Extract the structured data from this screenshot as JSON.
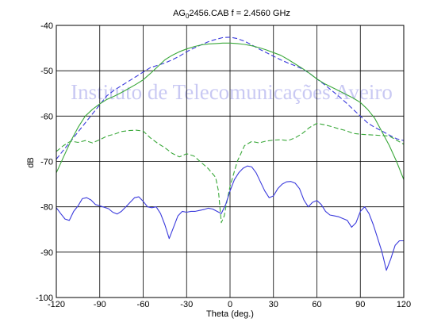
{
  "chart_data": {
    "type": "line",
    "title_main": "AG",
    "title_sub": "0",
    "title_rest": "2456.CAB   f = 2.4560 GHz",
    "xlabel": "Theta (deg.)",
    "ylabel": "dB",
    "watermark": "Instituto de Telecomunicações Aveiro",
    "xlim": [
      -120,
      120
    ],
    "ylim": [
      -100,
      -40
    ],
    "xticks": [
      -120,
      -90,
      -60,
      -30,
      0,
      30,
      60,
      90,
      120
    ],
    "yticks": [
      -40,
      -50,
      -60,
      -70,
      -80,
      -90,
      -100
    ],
    "grid": true,
    "series": [
      {
        "color": "#3a3adc",
        "dash": "6,3",
        "x": [
          -120,
          -115,
          -110,
          -105,
          -100,
          -95,
          -90,
          -85,
          -80,
          -75,
          -70,
          -65,
          -60,
          -55,
          -50,
          -45,
          -40,
          -35,
          -30,
          -25,
          -20,
          -15,
          -10,
          -5,
          0,
          5,
          10,
          15,
          20,
          25,
          30,
          35,
          40,
          45,
          50,
          55,
          60,
          65,
          70,
          75,
          80,
          85,
          90,
          95,
          100,
          105,
          110,
          115,
          120
        ],
        "y": [
          -69.5,
          -67.5,
          -65.5,
          -63.5,
          -61.5,
          -59.5,
          -57.5,
          -55.5,
          -54.3,
          -53.3,
          -52.3,
          -51.3,
          -50.3,
          -49.3,
          -48.8,
          -48.3,
          -47.6,
          -46.8,
          -45.8,
          -45.0,
          -44.3,
          -43.6,
          -43.1,
          -42.7,
          -42.6,
          -42.9,
          -43.5,
          -44.3,
          -45.2,
          -46.0,
          -46.8,
          -47.6,
          -48.3,
          -48.9,
          -49.6,
          -50.6,
          -51.8,
          -53.0,
          -54.3,
          -55.6,
          -57.0,
          -58.5,
          -60.0,
          -61.5,
          -62.5,
          -63.3,
          -64.2,
          -65.0,
          -65.4
        ]
      },
      {
        "color": "#3aa83a",
        "dash": "",
        "x": [
          -120,
          -115,
          -110,
          -105,
          -100,
          -95,
          -90,
          -85,
          -80,
          -75,
          -70,
          -65,
          -60,
          -55,
          -50,
          -45,
          -40,
          -35,
          -30,
          -25,
          -20,
          -15,
          -10,
          -5,
          0,
          5,
          10,
          15,
          20,
          25,
          30,
          35,
          40,
          45,
          50,
          55,
          60,
          65,
          70,
          75,
          80,
          85,
          90,
          95,
          100,
          105,
          110,
          115,
          120
        ],
        "y": [
          -72.5,
          -69.0,
          -65.5,
          -62.5,
          -60.0,
          -58.5,
          -57.3,
          -56.3,
          -55.6,
          -54.8,
          -53.9,
          -53.0,
          -52.0,
          -50.6,
          -49.1,
          -47.6,
          -46.6,
          -45.8,
          -45.2,
          -44.7,
          -44.3,
          -44.1,
          -44.0,
          -43.9,
          -43.9,
          -44.0,
          -44.2,
          -44.5,
          -44.9,
          -45.4,
          -46.0,
          -46.6,
          -47.5,
          -48.5,
          -49.5,
          -50.6,
          -51.8,
          -52.8,
          -53.6,
          -54.4,
          -55.2,
          -56.0,
          -57.0,
          -58.5,
          -60.5,
          -63.5,
          -66.5,
          -70.0,
          -74.0
        ]
      },
      {
        "color": "#3aa83a",
        "dash": "6,3",
        "x": [
          -120,
          -115,
          -110,
          -105,
          -100,
          -95,
          -90,
          -85,
          -80,
          -75,
          -70,
          -65,
          -60,
          -55,
          -50,
          -45,
          -40,
          -35,
          -30,
          -25,
          -20,
          -15,
          -10,
          -8,
          -6,
          -4,
          -2,
          0,
          5,
          10,
          15,
          20,
          25,
          30,
          35,
          40,
          45,
          50,
          55,
          60,
          65,
          70,
          75,
          80,
          85,
          90,
          95,
          100,
          105,
          110,
          115,
          120
        ],
        "y": [
          -67.8,
          -66.5,
          -65.5,
          -65.8,
          -65.4,
          -65.9,
          -65.2,
          -64.4,
          -64.0,
          -63.4,
          -63.2,
          -63.1,
          -63.3,
          -64.8,
          -66.0,
          -67.0,
          -68.2,
          -69.0,
          -68.3,
          -68.8,
          -70.2,
          -71.6,
          -73.5,
          -76.5,
          -83.5,
          -82.0,
          -78.5,
          -75.5,
          -70.0,
          -66.5,
          -65.6,
          -65.9,
          -65.5,
          -65.3,
          -65.2,
          -65.4,
          -64.8,
          -63.8,
          -62.5,
          -61.6,
          -61.9,
          -62.3,
          -62.8,
          -63.2,
          -63.8,
          -64.0,
          -64.1,
          -64.2,
          -64.3,
          -64.4,
          -65.3,
          -66.2
        ]
      },
      {
        "color": "#3a3adc",
        "dash": "",
        "x": [
          -120,
          -117,
          -114,
          -111,
          -108,
          -105,
          -102,
          -99,
          -96,
          -93,
          -90,
          -87,
          -84,
          -81,
          -78,
          -75,
          -72,
          -69,
          -66,
          -63,
          -60,
          -57,
          -54,
          -51,
          -48,
          -45,
          -42,
          -39,
          -36,
          -33,
          -30,
          -27,
          -24,
          -21,
          -18,
          -15,
          -12,
          -9,
          -6,
          -3,
          0,
          3,
          6,
          9,
          12,
          15,
          18,
          21,
          24,
          27,
          30,
          33,
          36,
          39,
          42,
          45,
          48,
          51,
          54,
          57,
          60,
          63,
          66,
          69,
          72,
          75,
          78,
          81,
          84,
          87,
          90,
          93,
          96,
          99,
          102,
          105,
          108,
          111,
          114,
          117,
          120
        ],
        "y": [
          -80.2,
          -81.5,
          -82.7,
          -83.0,
          -81.0,
          -79.8,
          -78.2,
          -78.0,
          -78.5,
          -79.5,
          -79.8,
          -80.1,
          -80.4,
          -81.2,
          -81.6,
          -81.0,
          -80.0,
          -79.0,
          -78.0,
          -77.8,
          -78.8,
          -80.0,
          -80.2,
          -80.0,
          -81.5,
          -84.0,
          -87.0,
          -84.5,
          -82.0,
          -81.0,
          -81.2,
          -81.0,
          -81.0,
          -80.8,
          -80.6,
          -80.3,
          -80.5,
          -81.0,
          -81.5,
          -79.5,
          -76.5,
          -74.0,
          -72.5,
          -71.5,
          -71.0,
          -71.2,
          -72.5,
          -74.5,
          -76.5,
          -78.0,
          -77.6,
          -76.0,
          -75.0,
          -74.5,
          -74.4,
          -74.8,
          -76.0,
          -78.5,
          -80.0,
          -79.0,
          -78.6,
          -79.5,
          -81.0,
          -81.8,
          -82.0,
          -82.2,
          -82.6,
          -83.0,
          -84.5,
          -83.5,
          -81.0,
          -80.0,
          -81.5,
          -84.0,
          -87.0,
          -90.0,
          -94.0,
          -91.5,
          -88.5,
          -87.5,
          -87.5
        ]
      }
    ]
  }
}
